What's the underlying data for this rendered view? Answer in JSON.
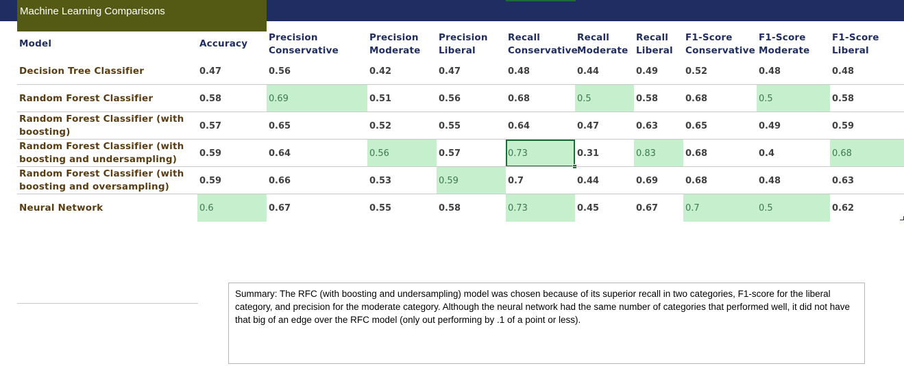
{
  "sheet": {
    "title": "Machine Learning Comparisons"
  },
  "table": {
    "headers": [
      {
        "line1": "Model",
        "line2": ""
      },
      {
        "line1": "Accuracy",
        "line2": ""
      },
      {
        "line1": "Precision",
        "line2": "Conservative"
      },
      {
        "line1": "Precision",
        "line2": "Moderate"
      },
      {
        "line1": "Precision",
        "line2": "Liberal"
      },
      {
        "line1": "Recall",
        "line2": "Conservative"
      },
      {
        "line1": "Recall",
        "line2": "Moderate"
      },
      {
        "line1": "Recall",
        "line2": "Liberal"
      },
      {
        "line1": "F1-Score",
        "line2": "Conservative"
      },
      {
        "line1": "F1-Score",
        "line2": "Moderate"
      },
      {
        "line1": "F1-Score",
        "line2": "Liberal"
      }
    ],
    "rows": [
      {
        "model_line1": "Decision Tree Classifier",
        "model_line2": "",
        "values": [
          "0.47",
          "0.56",
          "0.42",
          "0.47",
          "0.48",
          "0.44",
          "0.49",
          "0.52",
          "0.48",
          "0.48"
        ],
        "highlight": [
          false,
          false,
          false,
          false,
          false,
          false,
          false,
          false,
          false,
          false
        ]
      },
      {
        "model_line1": "Random Forest Classifier",
        "model_line2": "",
        "values": [
          "0.58",
          "0.69",
          "0.51",
          "0.56",
          "0.68",
          "0.5",
          "0.58",
          "0.68",
          "0.5",
          "0.58"
        ],
        "highlight": [
          false,
          true,
          false,
          false,
          false,
          true,
          false,
          false,
          true,
          false
        ]
      },
      {
        "model_line1": "Random Forest Classifier (with",
        "model_line2": "boosting)",
        "values": [
          "0.57",
          "0.65",
          "0.52",
          "0.55",
          "0.64",
          "0.47",
          "0.63",
          "0.65",
          "0.49",
          "0.59"
        ],
        "highlight": [
          false,
          false,
          false,
          false,
          false,
          false,
          false,
          false,
          false,
          false
        ]
      },
      {
        "model_line1": "Random Forest Classifier (with",
        "model_line2": "boosting and undersampling)",
        "values": [
          "0.59",
          "0.64",
          "0.56",
          "0.57",
          "0.73",
          "0.31",
          "0.83",
          "0.68",
          "0.4",
          "0.68"
        ],
        "highlight": [
          false,
          false,
          true,
          false,
          true,
          false,
          true,
          false,
          false,
          true
        ]
      },
      {
        "model_line1": "Random Forest Classifier (with",
        "model_line2": "boosting and oversampling)",
        "values": [
          "0.59",
          "0.66",
          "0.53",
          "0.59",
          "0.7",
          "0.44",
          "0.69",
          "0.68",
          "0.48",
          "0.63"
        ],
        "highlight": [
          false,
          false,
          false,
          true,
          false,
          false,
          false,
          false,
          false,
          false
        ]
      },
      {
        "model_line1": "Neural Network",
        "model_line2": "",
        "values": [
          "0.6",
          "0.67",
          "0.55",
          "0.58",
          "0.73",
          "0.45",
          "0.67",
          "0.7",
          "0.5",
          "0.62"
        ],
        "highlight": [
          true,
          false,
          false,
          false,
          true,
          false,
          false,
          true,
          true,
          false
        ]
      }
    ]
  },
  "summary": {
    "text": "Summary: The RFC (with boosting and undersampling) model was chosen because of its superior recall in two categories, F1-score for the liberal category, and precision for the moderate category.  Although the neural network had the same number of categories that performed well, it did not have that big of an edge over the RFC model (only out performing by .1 of a point or less)."
  },
  "colors": {
    "header_bar": "#1f2d62",
    "title_fill": "#545a13",
    "highlight_fill": "#c6efce",
    "highlight_text": "#3b7a4f",
    "row_label_text": "#5a3c10",
    "header_text": "#1f2d62",
    "selection_border": "#1e6b3a"
  }
}
